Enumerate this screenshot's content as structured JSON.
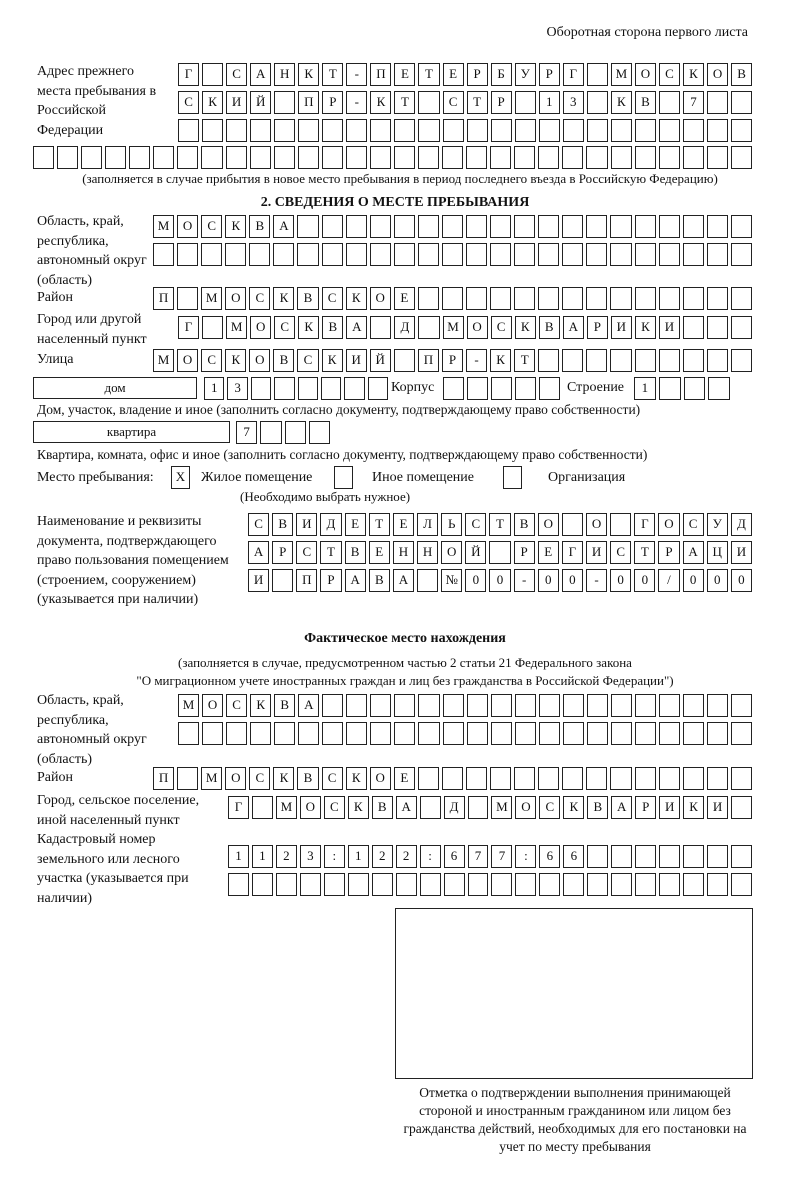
{
  "header": "Оборотная сторона первого листа",
  "prev_address": {
    "label": "Адрес прежнего места пребывания в Российской Федерации",
    "rows": [
      [
        "Г",
        "",
        "С",
        "А",
        "Н",
        "К",
        "Т",
        "-",
        "П",
        "Е",
        "Т",
        "Е",
        "Р",
        "Б",
        "У",
        "Р",
        "Г",
        "",
        "М",
        "О",
        "С",
        "К",
        "О",
        "В"
      ],
      [
        "С",
        "К",
        "И",
        "Й",
        "",
        "П",
        "Р",
        "-",
        "К",
        "Т",
        "",
        "С",
        "Т",
        "Р",
        "",
        "1",
        "3",
        "",
        "К",
        "В",
        "",
        "7",
        "",
        ""
      ],
      [
        "",
        "",
        "",
        "",
        "",
        "",
        "",
        "",
        "",
        "",
        "",
        "",
        "",
        "",
        "",
        "",
        "",
        "",
        "",
        "",
        "",
        "",
        "",
        ""
      ],
      [
        "",
        "",
        "",
        "",
        "",
        "",
        "",
        "",
        "",
        "",
        "",
        "",
        "",
        "",
        "",
        "",
        "",
        "",
        "",
        "",
        "",
        "",
        "",
        "",
        "",
        "",
        "",
        "",
        "",
        ""
      ]
    ],
    "note": "(заполняется в случае прибытия в новое место пребывания в период последнего въезда в Российскую Федерацию)"
  },
  "section2": {
    "title": "2. СВЕДЕНИЯ О МЕСТЕ ПРЕБЫВАНИЯ",
    "region_label": "Область, край, республика, автономный округ (область)",
    "region_rows": [
      [
        "М",
        "О",
        "С",
        "К",
        "В",
        "А",
        "",
        "",
        "",
        "",
        "",
        "",
        "",
        "",
        "",
        "",
        "",
        "",
        "",
        "",
        "",
        "",
        "",
        "",
        ""
      ],
      [
        "",
        "",
        "",
        "",
        "",
        "",
        "",
        "",
        "",
        "",
        "",
        "",
        "",
        "",
        "",
        "",
        "",
        "",
        "",
        "",
        "",
        "",
        "",
        "",
        ""
      ]
    ],
    "district_label": "Район",
    "district": [
      "П",
      "",
      "М",
      "О",
      "С",
      "К",
      "В",
      "С",
      "К",
      "О",
      "Е",
      "",
      "",
      "",
      "",
      "",
      "",
      "",
      "",
      "",
      "",
      "",
      "",
      "",
      ""
    ],
    "city_label": "Город или другой населенный пункт",
    "city": [
      "Г",
      "",
      "М",
      "О",
      "С",
      "К",
      "В",
      "А",
      "",
      "Д",
      "",
      "М",
      "О",
      "С",
      "К",
      "В",
      "А",
      "Р",
      "И",
      "К",
      "И",
      "",
      "",
      ""
    ],
    "street_label": "Улица",
    "street": [
      "М",
      "О",
      "С",
      "К",
      "О",
      "В",
      "С",
      "К",
      "И",
      "Й",
      "",
      "П",
      "Р",
      "-",
      "К",
      "Т",
      "",
      "",
      "",
      "",
      "",
      "",
      "",
      "",
      ""
    ],
    "house_type": "дом",
    "house": [
      "1",
      "3",
      "",
      "",
      "",
      "",
      "",
      ""
    ],
    "korpus_label": "Корпус",
    "korpus": [
      "",
      "",
      "",
      "",
      ""
    ],
    "building_label": "Строение",
    "building": [
      "1",
      "",
      "",
      ""
    ],
    "house_note": "Дом, участок, владение и иное (заполнить согласно документу, подтверждающему право собственности)",
    "flat_type": "квартира",
    "flat": [
      "7",
      "",
      "",
      ""
    ],
    "flat_note": "Квартира, комната, офис и иное (заполнить согласно документу, подтверждающему право собственности)",
    "stay_label": "Место пребывания:",
    "stay_options": [
      {
        "label": "Жилое помещение",
        "mark": "X"
      },
      {
        "label": "Иное помещение",
        "mark": ""
      },
      {
        "label": "Организация",
        "mark": ""
      }
    ],
    "stay_note": "(Необходимо выбрать нужное)",
    "doc_label": "Наименование и реквизиты документа, подтверждающего право пользования помещением (строением, сооружением) (указывается при наличии)",
    "doc_rows": [
      [
        "С",
        "В",
        "И",
        "Д",
        "Е",
        "Т",
        "Е",
        "Л",
        "Ь",
        "С",
        "Т",
        "В",
        "О",
        "",
        "О",
        "",
        "Г",
        "О",
        "С",
        "У",
        "Д"
      ],
      [
        "А",
        "Р",
        "С",
        "Т",
        "В",
        "Е",
        "Н",
        "Н",
        "О",
        "Й",
        "",
        "Р",
        "Е",
        "Г",
        "И",
        "С",
        "Т",
        "Р",
        "А",
        "Ц",
        "И"
      ],
      [
        "И",
        "",
        "П",
        "Р",
        "А",
        "В",
        "А",
        "",
        "№",
        "0",
        "0",
        "-",
        "0",
        "0",
        "-",
        "0",
        "0",
        "/",
        "0",
        "0",
        "0"
      ]
    ]
  },
  "actual": {
    "title": "Фактическое место нахождения",
    "note1": "(заполняется в случае, предусмотренном частью 2 статьи 21 Федерального закона",
    "note2": "\"О миграционном учете иностранных граждан и лиц без гражданства в Российской Федерации\")",
    "region_label": "Область, край, республика, автономный округ (область)",
    "region_rows": [
      [
        "М",
        "О",
        "С",
        "К",
        "В",
        "А",
        "",
        "",
        "",
        "",
        "",
        "",
        "",
        "",
        "",
        "",
        "",
        "",
        "",
        "",
        "",
        "",
        "",
        ""
      ],
      [
        "",
        "",
        "",
        "",
        "",
        "",
        "",
        "",
        "",
        "",
        "",
        "",
        "",
        "",
        "",
        "",
        "",
        "",
        "",
        "",
        "",
        "",
        "",
        ""
      ]
    ],
    "district_label": "Район",
    "district": [
      "П",
      "",
      "М",
      "О",
      "С",
      "К",
      "В",
      "С",
      "К",
      "О",
      "Е",
      "",
      "",
      "",
      "",
      "",
      "",
      "",
      "",
      "",
      "",
      "",
      "",
      "",
      ""
    ],
    "city_label": "Город, сельское поселение, иной населенный пункт",
    "city": [
      "Г",
      "",
      "М",
      "О",
      "С",
      "К",
      "В",
      "А",
      "",
      "Д",
      "",
      "М",
      "О",
      "С",
      "К",
      "В",
      "А",
      "Р",
      "И",
      "К",
      "И",
      ""
    ],
    "cadastre_label": "Кадастровый номер земельного или лесного участка (указывается при наличии)",
    "cadastre_rows": [
      [
        "1",
        "1",
        "2",
        "3",
        ":",
        "1",
        "2",
        "2",
        ":",
        "6",
        "7",
        "7",
        ":",
        "6",
        "6",
        "",
        "",
        "",
        "",
        "",
        "",
        ""
      ],
      [
        "",
        "",
        "",
        "",
        "",
        "",
        "",
        "",
        "",
        "",
        "",
        "",
        "",
        "",
        "",
        "",
        "",
        "",
        "",
        "",
        "",
        ""
      ]
    ]
  },
  "stamp_caption": "Отметка о подтверждении выполнения принимающей стороной и иностранным гражданином или лицом без гражданства действий, необходимых для его постановки на учет по месту пребывания"
}
